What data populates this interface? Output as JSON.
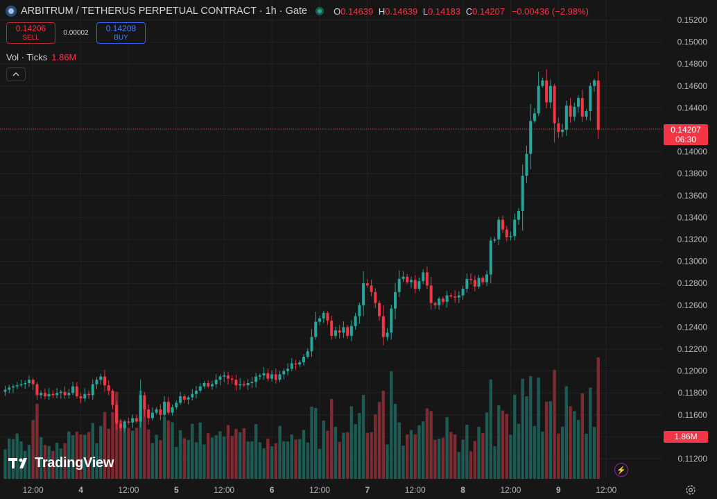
{
  "header": {
    "symbol_title": "ARBITRUM / TETHERUS PERPETUAL CONTRACT · 1h · Gate",
    "ohlc": {
      "o_label": "O",
      "o": "0.14639",
      "h_label": "H",
      "h": "0.14639",
      "l_label": "L",
      "l": "0.14183",
      "c_label": "C",
      "c": "0.14207",
      "change": "−0.00436 (−2.98%)"
    },
    "icons": {
      "symbol": "arbitrum-logo-icon",
      "status": "market-open-dot-icon"
    }
  },
  "trade": {
    "sell_price": "0.14206",
    "sell_label": "SELL",
    "spread": "0.00002",
    "buy_price": "0.14208",
    "buy_label": "BUY"
  },
  "volume_legend": {
    "label": "Vol · Ticks",
    "value": "1.86M"
  },
  "logo": {
    "text": "TradingView"
  },
  "price_tag": {
    "price": "0.14207",
    "countdown": "06:30"
  },
  "volume_tag": {
    "value": "1.86M"
  },
  "colors": {
    "up": "#26a69a",
    "down": "#f23645",
    "up_vol": "#1d5a53",
    "down_vol": "#7e2a31",
    "background": "#161616",
    "grid": "#222222"
  },
  "chart_data": {
    "type": "candlestick",
    "y_ticks": [
      "0.15200",
      "0.15000",
      "0.14800",
      "0.14600",
      "0.14400",
      "0.14200",
      "0.14000",
      "0.13800",
      "0.13600",
      "0.13400",
      "0.13200",
      "0.13000",
      "0.12800",
      "0.12600",
      "0.12400",
      "0.12200",
      "0.12000",
      "0.11800",
      "0.11600",
      "0.11400",
      "0.11200"
    ],
    "ylim": [
      0.1114,
      0.1528
    ],
    "x_ticks": [
      {
        "label": "12:00",
        "t": 7
      },
      {
        "label": "4",
        "t": 19
      },
      {
        "label": "12:00",
        "t": 31
      },
      {
        "label": "5",
        "t": 43
      },
      {
        "label": "12:00",
        "t": 55
      },
      {
        "label": "6",
        "t": 67
      },
      {
        "label": "12:00",
        "t": 79
      },
      {
        "label": "7",
        "t": 91
      },
      {
        "label": "12:00",
        "t": 103
      },
      {
        "label": "8",
        "t": 115
      },
      {
        "label": "12:00",
        "t": 127
      },
      {
        "label": "9",
        "t": 139
      },
      {
        "label": "12:00",
        "t": 151
      }
    ],
    "close_series": [
      0.1183,
      0.1185,
      0.1186,
      0.1187,
      0.1188,
      0.1189,
      0.1192,
      0.1188,
      0.1178,
      0.118,
      0.1177,
      0.1179,
      0.1178,
      0.118,
      0.1181,
      0.1178,
      0.118,
      0.1186,
      0.1177,
      0.1175,
      0.1179,
      0.1178,
      0.1188,
      0.1192,
      0.1195,
      0.1187,
      0.1182,
      0.1169,
      0.1152,
      0.1148,
      0.1154,
      0.1153,
      0.1157,
      0.1154,
      0.1178,
      0.1165,
      0.1157,
      0.1162,
      0.1165,
      0.116,
      0.1172,
      0.1162,
      0.1167,
      0.1171,
      0.1177,
      0.1174,
      0.1176,
      0.1179,
      0.1182,
      0.1186,
      0.1189,
      0.1186,
      0.1188,
      0.1192,
      0.1195,
      0.1196,
      0.1193,
      0.1192,
      0.1187,
      0.1188,
      0.1187,
      0.1189,
      0.119,
      0.1195,
      0.1196,
      0.1198,
      0.1193,
      0.1197,
      0.1192,
      0.1197,
      0.12,
      0.1202,
      0.1207,
      0.1206,
      0.1208,
      0.1213,
      0.1218,
      0.1231,
      0.1245,
      0.1248,
      0.1253,
      0.1246,
      0.1232,
      0.1237,
      0.1235,
      0.124,
      0.1232,
      0.1241,
      0.125,
      0.126,
      0.128,
      0.1278,
      0.1272,
      0.1262,
      0.125,
      0.1231,
      0.1235,
      0.1257,
      0.1272,
      0.1284,
      0.1286,
      0.1281,
      0.1283,
      0.1275,
      0.1282,
      0.129,
      0.1278,
      0.1262,
      0.126,
      0.1266,
      0.1263,
      0.1269,
      0.1268,
      0.1267,
      0.1269,
      0.1275,
      0.1284,
      0.1283,
      0.1277,
      0.1285,
      0.1281,
      0.1288,
      0.1319,
      0.132,
      0.1338,
      0.1329,
      0.1322,
      0.1323,
      0.1338,
      0.1346,
      0.1378,
      0.1398,
      0.1428,
      0.1435,
      0.146,
      0.1465,
      0.1445,
      0.146,
      0.1426,
      0.1418,
      0.142,
      0.1442,
      0.1432,
      0.1441,
      0.1449,
      0.1432,
      0.1437,
      0.146,
      0.1465,
      0.142
    ]
  }
}
